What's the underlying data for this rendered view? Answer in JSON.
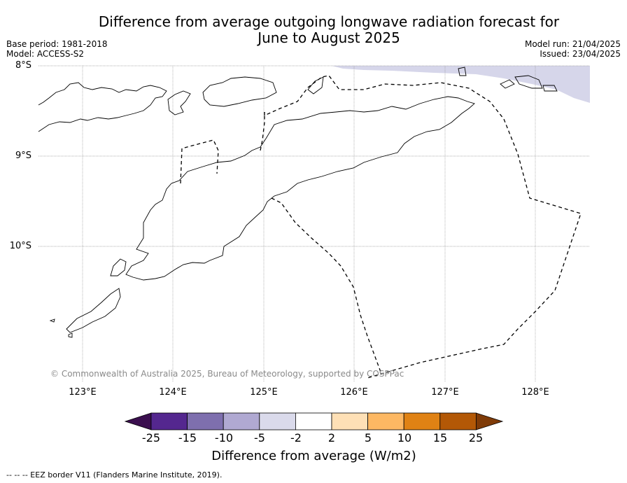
{
  "title_line1": "Difference from average outgoing longwave radiation forecast for",
  "title_line2": "June to August 2025",
  "base_period": "Base period: 1981-2018",
  "model": "Model: ACCESS-S2",
  "model_run": "Model run: 21/04/2025",
  "issued": "Issued: 23/04/2025",
  "lat_labels": [
    "8°S",
    "9°S",
    "10°S"
  ],
  "lon_labels": [
    "123°E",
    "124°E",
    "125°E",
    "126°E",
    "127°E",
    "128°E"
  ],
  "copyright": "© Commonwealth of Australia 2025, Bureau of Meteorology, supported by COSPPac",
  "colorbar": {
    "ticks": [
      "-25",
      "-15",
      "-10",
      "-5",
      "-2",
      "2",
      "5",
      "10",
      "15",
      "25"
    ],
    "colors": [
      "#3b0f4f",
      "#54278f",
      "#7e6fae",
      "#b0a9d2",
      "#dadaeb",
      "#ffffff",
      "#fee0b6",
      "#fdb863",
      "#e08214",
      "#b35806",
      "#7f3b08"
    ],
    "label": "Difference from average (W/m2)"
  },
  "eez_note": "-- -- -- EEZ border V11 (Flanders Marine Institute, 2019)."
}
